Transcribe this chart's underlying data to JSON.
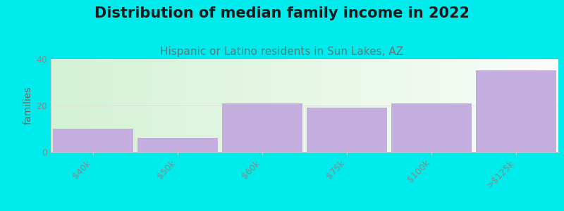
{
  "title": "Distribution of median family income in 2022",
  "subtitle": "Hispanic or Latino residents in Sun Lakes, AZ",
  "ylabel": "families",
  "categories": [
    "$40k",
    "$50k",
    "$60k",
    "$75k",
    "$100k",
    ">$125k"
  ],
  "values": [
    10,
    6,
    21,
    19,
    21,
    35
  ],
  "bar_color": "#c4aee0",
  "background_color": "#00ecec",
  "ylim": [
    0,
    40
  ],
  "yticks": [
    0,
    20,
    40
  ],
  "title_fontsize": 15,
  "subtitle_fontsize": 11,
  "subtitle_color": "#5a7a7a",
  "ylabel_color": "#666666",
  "bar_width": 0.95,
  "title_color": "#1a1a1a",
  "tick_color": "#888888",
  "tick_fontsize": 9,
  "grid_color": "#dddddd",
  "plot_bg_left": "#d4eedd",
  "plot_bg_right": "#f8faf8"
}
